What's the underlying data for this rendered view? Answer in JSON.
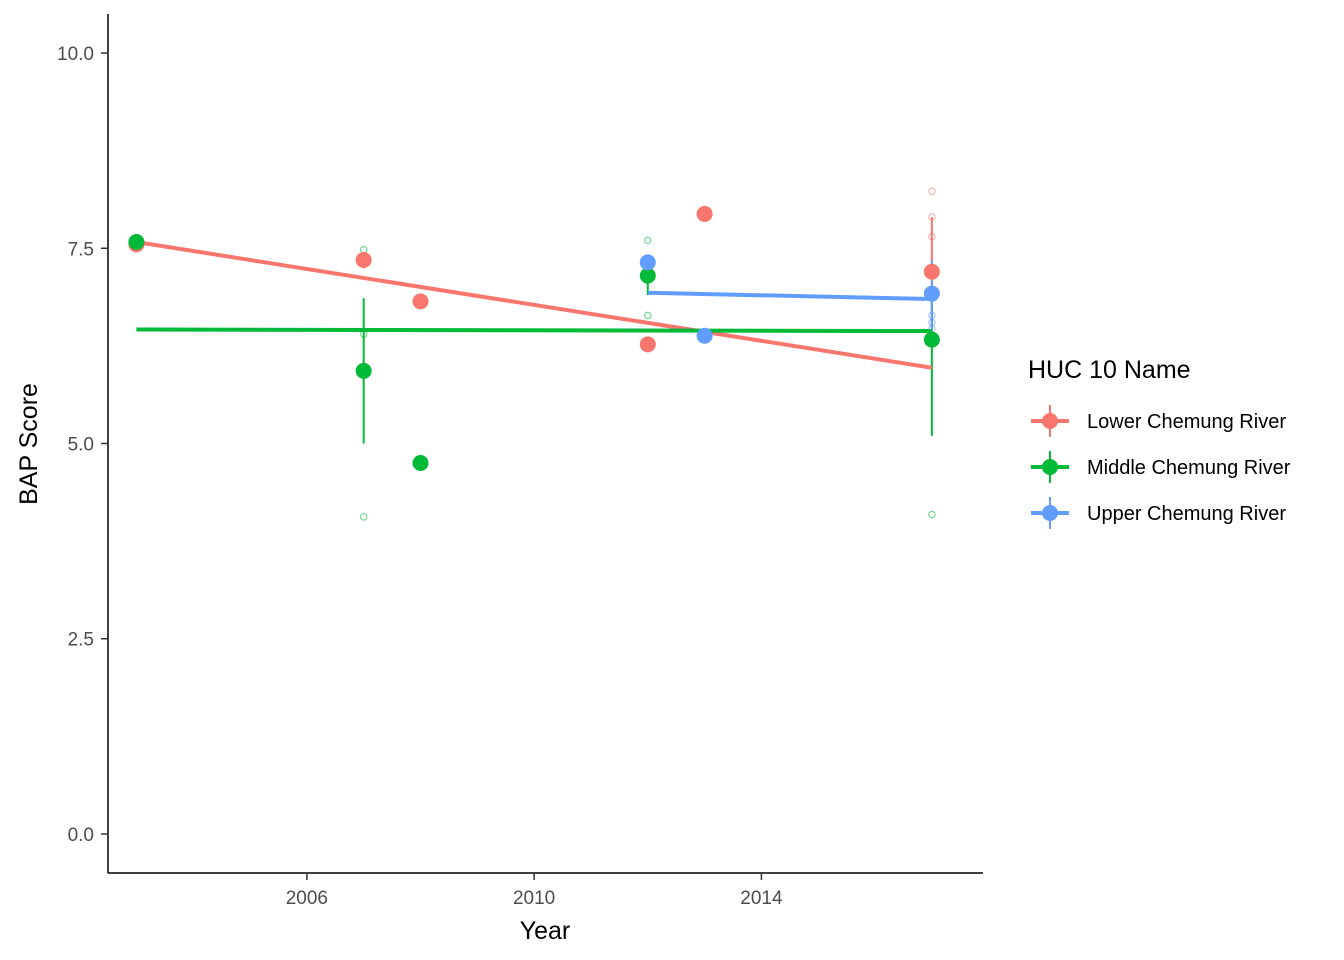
{
  "chart_data": {
    "type": "scatter",
    "title": "",
    "xlabel": "Year",
    "ylabel": "BAP Score",
    "xlim": [
      2002.5,
      2017.9
    ],
    "ylim": [
      -0.5,
      10.5
    ],
    "x_ticks": [
      2006,
      2010,
      2014
    ],
    "x_tick_labels": [
      "2006",
      "2010",
      "2014"
    ],
    "y_ticks": [
      0,
      2.5,
      5,
      7.5,
      10
    ],
    "y_tick_labels": [
      "0.0",
      "2.5",
      "5.0",
      "7.5",
      "10.0"
    ],
    "grid": false,
    "legend": {
      "title": "HUC 10 Name",
      "position": "right",
      "entries": [
        "Lower Chemung River",
        "Middle Chemung River",
        "Upper Chemung River"
      ]
    },
    "series": [
      {
        "name": "Lower Chemung River",
        "color": "#F8766D",
        "means": [
          {
            "x": 2003,
            "y": 7.55
          },
          {
            "x": 2007,
            "y": 7.35
          },
          {
            "x": 2008,
            "y": 6.82
          },
          {
            "x": 2012,
            "y": 6.27
          },
          {
            "x": 2013,
            "y": 7.94
          },
          {
            "x": 2017,
            "y": 7.2,
            "ymin": 6.5,
            "ymax": 7.9
          }
        ],
        "raw_points": [
          {
            "x": 2017,
            "y": 8.23
          },
          {
            "x": 2017,
            "y": 7.9
          },
          {
            "x": 2017,
            "y": 7.65
          }
        ],
        "trend": [
          {
            "x": 2003,
            "y": 7.58
          },
          {
            "x": 2017,
            "y": 5.97
          }
        ]
      },
      {
        "name": "Middle Chemung River",
        "color": "#00BA38",
        "means": [
          {
            "x": 2003,
            "y": 7.58
          },
          {
            "x": 2007,
            "y": 5.93,
            "ymin": 5.0,
            "ymax": 6.86
          },
          {
            "x": 2008,
            "y": 4.75
          },
          {
            "x": 2012,
            "y": 7.15,
            "ymin": 6.9,
            "ymax": 7.3
          },
          {
            "x": 2017,
            "y": 6.33,
            "ymin": 5.1,
            "ymax": 7.0
          }
        ],
        "raw_points": [
          {
            "x": 2007,
            "y": 7.48
          },
          {
            "x": 2007,
            "y": 6.4
          },
          {
            "x": 2007,
            "y": 4.06
          },
          {
            "x": 2012,
            "y": 7.6
          },
          {
            "x": 2012,
            "y": 6.64
          },
          {
            "x": 2017,
            "y": 4.09
          }
        ],
        "trend": [
          {
            "x": 2003,
            "y": 6.46
          },
          {
            "x": 2017,
            "y": 6.44
          }
        ]
      },
      {
        "name": "Upper Chemung River",
        "color": "#619CFF",
        "means": [
          {
            "x": 2012,
            "y": 7.32
          },
          {
            "x": 2013,
            "y": 6.38
          },
          {
            "x": 2017,
            "y": 6.92,
            "ymin": 6.4,
            "ymax": 7.35
          }
        ],
        "raw_points": [
          {
            "x": 2017,
            "y": 6.64
          },
          {
            "x": 2017,
            "y": 6.55
          },
          {
            "x": 2017,
            "y": 6.47
          }
        ],
        "trend": [
          {
            "x": 2012,
            "y": 6.93
          },
          {
            "x": 2017,
            "y": 6.85
          }
        ]
      }
    ]
  }
}
